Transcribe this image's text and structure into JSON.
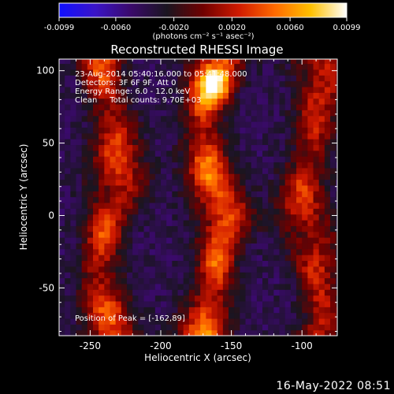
{
  "chart_data": {
    "type": "heatmap",
    "title": "Reconstructed RHESSI Image",
    "xlabel": "Heliocentric X (arcsec)",
    "ylabel": "Heliocentric Y (arcsec)",
    "xlim": [
      -272,
      -75
    ],
    "ylim": [
      -83,
      108
    ],
    "xticks": [
      -250,
      -200,
      -150,
      -100
    ],
    "yticks": [
      100,
      50,
      0,
      -50
    ],
    "colorbar": {
      "range": [
        -0.0099,
        0.0099
      ],
      "ticks": [
        "-0.0099",
        "-0.0060",
        "-0.0020",
        "0.0020",
        "0.0060",
        "0.0099"
      ],
      "units": "(photons cm⁻² s⁻¹ asec⁻²)",
      "colormap": [
        "#1010ff",
        "#3a14c8",
        "#3a0a6a",
        "#1a1520",
        "#700000",
        "#d01a00",
        "#ff6a00",
        "#ffc000",
        "#ffffff"
      ]
    },
    "annotations": {
      "time": "23-Aug-2014 05:40:16.000 to 05:41:48.000",
      "detectors": "Detectors: 3F 6F 9F, Att 0",
      "energy": "Energy Range: 6.0 - 12.0 keV",
      "method": "Clean     Total counts: 9.70E+03",
      "peak": "Position of Peak = [-162,89]"
    },
    "bands": [
      {
        "x": -238,
        "intensity": 0.78
      },
      {
        "x": -165,
        "intensity": 0.95
      },
      {
        "x": -95,
        "intensity": 0.7
      }
    ],
    "peak": [
      -162,
      89
    ]
  },
  "footer": {
    "date": "16-May-2022 08:51"
  }
}
